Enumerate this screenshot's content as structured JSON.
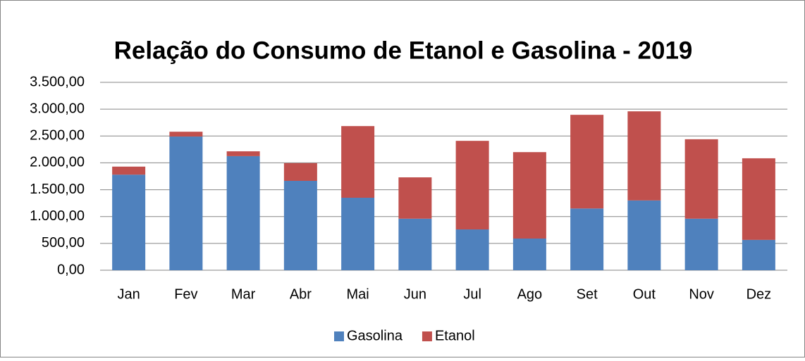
{
  "chart_data": {
    "type": "stacked_bar",
    "title": "Relação do Consumo de Etanol e Gasolina - 2019",
    "categories": [
      "Jan",
      "Fev",
      "Mar",
      "Abr",
      "Mai",
      "Jun",
      "Jul",
      "Ago",
      "Set",
      "Out",
      "Nov",
      "Dez"
    ],
    "series": [
      {
        "name": "Gasolina",
        "color": "#4f81bd",
        "values": [
          1780,
          2490,
          2125,
          1665,
          1350,
          960,
          760,
          590,
          1150,
          1300,
          960,
          565
        ]
      },
      {
        "name": "Etanol",
        "color": "#c0504d",
        "values": [
          150,
          90,
          90,
          330,
          1335,
          770,
          1650,
          1610,
          1745,
          1660,
          1480,
          1520
        ]
      }
    ],
    "ylim": [
      0,
      3500
    ],
    "yticks": [
      {
        "value": 0,
        "label": "0,00"
      },
      {
        "value": 500,
        "label": "500,00"
      },
      {
        "value": 1000,
        "label": "1.000,00"
      },
      {
        "value": 1500,
        "label": "1.500,00"
      },
      {
        "value": 2000,
        "label": "2.000,00"
      },
      {
        "value": 2500,
        "label": "2.500,00"
      },
      {
        "value": 3000,
        "label": "3.000,00"
      },
      {
        "value": 3500,
        "label": "3.500,00"
      }
    ],
    "grid": true,
    "legend": "bottom"
  }
}
